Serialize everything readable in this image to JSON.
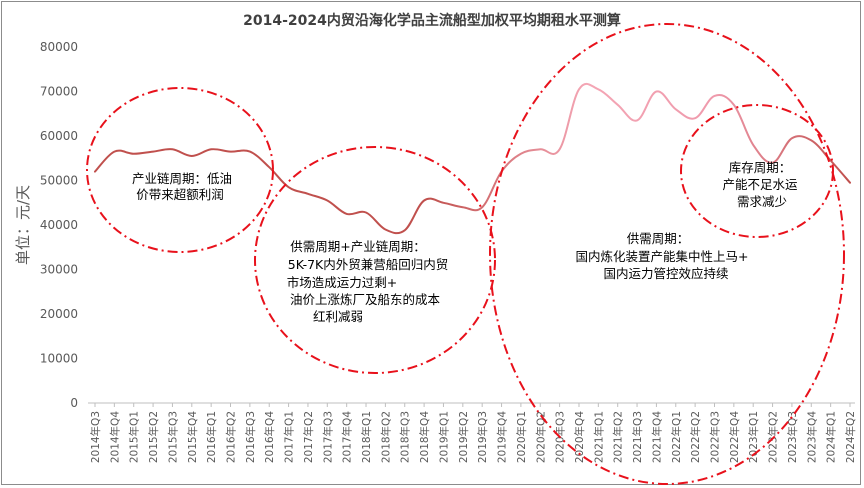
{
  "chart_data": {
    "type": "line",
    "title": "2014-2024内贸沿海化学品主流船型加权平均期租水平测算",
    "ylabel": "单位：元/天",
    "ylim": [
      0,
      80000
    ],
    "yticks": [
      0,
      10000,
      20000,
      30000,
      40000,
      50000,
      60000,
      70000,
      80000
    ],
    "grid": false,
    "legend": "none",
    "categories": [
      "2014年Q3",
      "2014年Q4",
      "2015年Q1",
      "2015年Q2",
      "2015年Q3",
      "2015年Q4",
      "2016年Q1",
      "2016年Q2",
      "2016年Q3",
      "2016年Q4",
      "2017年Q1",
      "2017年Q2",
      "2017年Q3",
      "2017年Q4",
      "2018年Q1",
      "2018年Q2",
      "2018年Q3",
      "2018年Q4",
      "2019年Q1",
      "2019年Q2",
      "2019年Q3",
      "2019年Q4",
      "2020年Q1",
      "2020年Q2",
      "2020年Q3",
      "2020年Q4",
      "2021年Q1",
      "2021年Q2",
      "2021年Q3",
      "2021年Q4",
      "2022年Q1",
      "2022年Q2",
      "2022年Q3",
      "2022年Q4",
      "2023年Q1",
      "2023年Q2",
      "2023年Q3",
      "2023年Q4",
      "2024年Q1",
      "2024年Q2"
    ],
    "values": [
      52000,
      56500,
      56000,
      56500,
      57000,
      55500,
      57000,
      56500,
      56500,
      53000,
      48500,
      47000,
      45500,
      42500,
      42800,
      39000,
      38800,
      45500,
      45000,
      44000,
      44000,
      52000,
      56000,
      57000,
      57000,
      70500,
      70500,
      67000,
      63500,
      70000,
      66000,
      64000,
      69000,
      67000,
      58000,
      54000,
      59500,
      59000,
      54500,
      49500
    ],
    "series_colors": [
      "#c0504d",
      "#f4a6b5"
    ],
    "annotations": [
      {
        "lines": [
          "产业链周期：低油",
          "价带来超额利润"
        ]
      },
      {
        "lines": [
          "供需周期+产业链周期：",
          "5K-7K内外贸兼营船回归内贸",
          "市场造成运力过剩+",
          "油价上涨炼厂及船东的成本",
          "红利减弱"
        ]
      },
      {
        "lines": [
          "供需周期：",
          "国内炼化装置产能集中性上马+",
          "国内运力管控效应持续"
        ]
      },
      {
        "lines": [
          "库存周期：",
          "产能不足水运",
          "需求减少"
        ]
      }
    ],
    "annotation_color": "#e8111b"
  }
}
